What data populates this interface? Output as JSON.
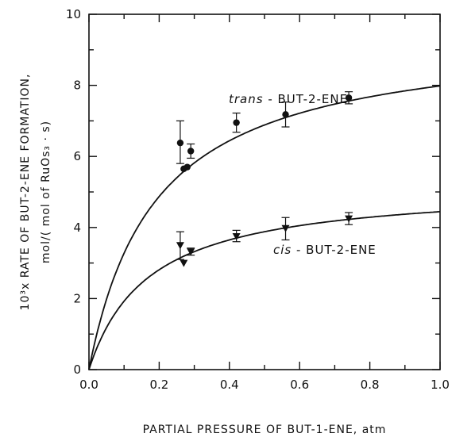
{
  "chart_data": {
    "type": "scatter",
    "xlabel": "PARTIAL PRESSURE OF BUT-1-ENE, atm",
    "ylabel_line1": "10³x RATE OF BUT-2-ENE FORMATION,",
    "ylabel_line2": "mol/( mol of RuOs₃ · s)",
    "xlim": [
      0,
      1.0
    ],
    "ylim": [
      0,
      10
    ],
    "grid": false,
    "x_ticks": [
      0,
      0.2,
      0.4,
      0.6,
      0.8,
      1.0
    ],
    "x_tick_labels": [
      "0.0",
      "0.2",
      "0.4",
      "0.6",
      "0.8",
      "1.0"
    ],
    "y_ticks": [
      0,
      2,
      4,
      6,
      8,
      10
    ],
    "y_tick_labels": [
      "0",
      "2",
      "4",
      "6",
      "8",
      "10"
    ],
    "series": [
      {
        "name": "trans-BUT-2-ENE",
        "label_italic": "trans",
        "label_rest": " - BUT-2-ENE",
        "marker": "circle",
        "points": [
          {
            "x": 0.26,
            "y": 6.38,
            "lo": 5.8,
            "hi": 7.0
          },
          {
            "x": 0.27,
            "y": 5.65
          },
          {
            "x": 0.28,
            "y": 5.7
          },
          {
            "x": 0.29,
            "y": 6.15,
            "lo": 5.95,
            "hi": 6.35
          },
          {
            "x": 0.42,
            "y": 6.95,
            "lo": 6.68,
            "hi": 7.22
          },
          {
            "x": 0.56,
            "y": 7.18,
            "lo": 6.83,
            "hi": 7.53
          },
          {
            "x": 0.74,
            "y": 7.65,
            "lo": 7.48,
            "hi": 7.82
          }
        ],
        "fit": {
          "vmax": 9.5,
          "k": 0.19
        }
      },
      {
        "name": "cis-BUT-2-ENE",
        "label_italic": "cis",
        "label_rest": " - BUT-2-ENE",
        "marker": "triangle-down",
        "points": [
          {
            "x": 0.26,
            "y": 3.5,
            "lo": 3.1,
            "hi": 3.88
          },
          {
            "x": 0.27,
            "y": 3.0
          },
          {
            "x": 0.29,
            "y": 3.32,
            "lo": 3.22,
            "hi": 3.42
          },
          {
            "x": 0.42,
            "y": 3.75,
            "lo": 3.6,
            "hi": 3.92
          },
          {
            "x": 0.56,
            "y": 3.98,
            "lo": 3.65,
            "hi": 4.28
          },
          {
            "x": 0.74,
            "y": 4.25,
            "lo": 4.08,
            "hi": 4.42
          }
        ],
        "fit": {
          "vmax": 5.2,
          "k": 0.17
        }
      }
    ]
  }
}
